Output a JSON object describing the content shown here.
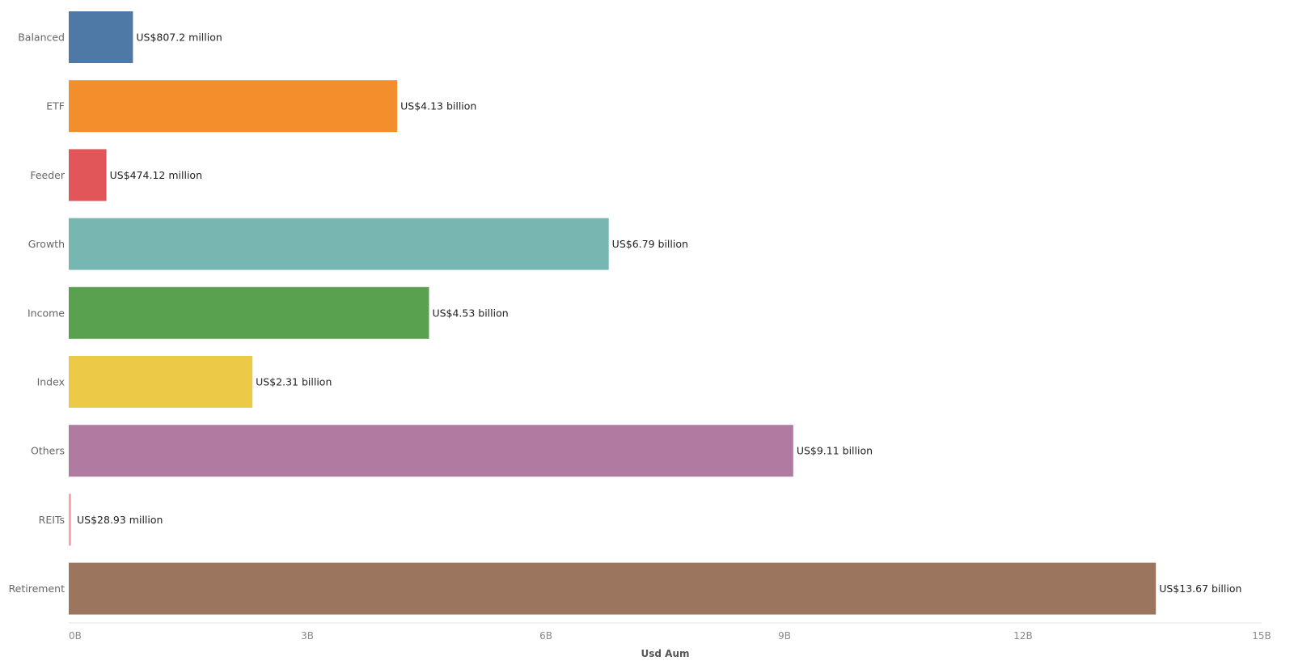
{
  "chart_data": {
    "type": "bar",
    "orientation": "horizontal",
    "xlabel": "Usd Aum",
    "xlim": [
      0,
      15000000000
    ],
    "ticks": [
      {
        "value": 0,
        "label": "0B"
      },
      {
        "value": 3000000000,
        "label": "3B"
      },
      {
        "value": 6000000000,
        "label": "6B"
      },
      {
        "value": 9000000000,
        "label": "9B"
      },
      {
        "value": 12000000000,
        "label": "12B"
      },
      {
        "value": 15000000000,
        "label": "15B"
      }
    ],
    "grid": false,
    "bars": [
      {
        "category": "Balanced",
        "value": 807200000,
        "label": "US$807.2 million",
        "color": "#4e79a7"
      },
      {
        "category": "ETF",
        "value": 4130000000,
        "label": "US$4.13 billion",
        "color": "#f28e2b"
      },
      {
        "category": "Feeder",
        "value": 474120000,
        "label": "US$474.12 million",
        "color": "#e15759"
      },
      {
        "category": "Growth",
        "value": 6790000000,
        "label": "US$6.79 billion",
        "color": "#76b7b2"
      },
      {
        "category": "Income",
        "value": 4530000000,
        "label": "US$4.53 billion",
        "color": "#59a14f"
      },
      {
        "category": "Index",
        "value": 2310000000,
        "label": "US$2.31 billion",
        "color": "#edc948"
      },
      {
        "category": "Others",
        "value": 9110000000,
        "label": "US$9.11 billion",
        "color": "#b07aa1"
      },
      {
        "category": "REITs",
        "value": 28930000,
        "label": "US$28.93 million",
        "color": "#ff9da7"
      },
      {
        "category": "Retirement",
        "value": 13670000000,
        "label": "US$13.67 billion",
        "color": "#9c755f"
      }
    ]
  }
}
